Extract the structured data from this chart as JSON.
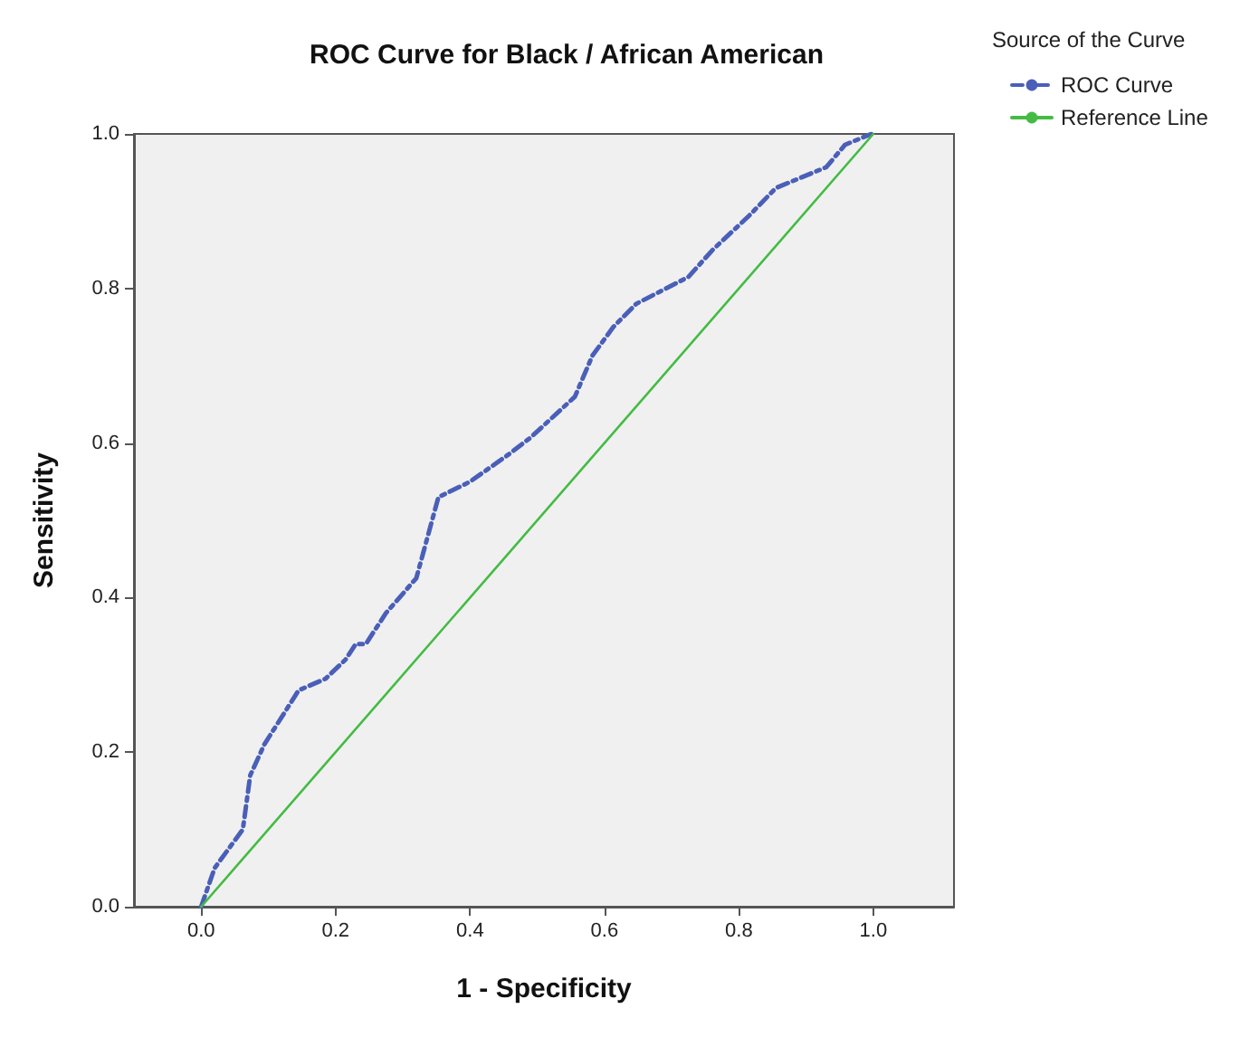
{
  "chart_data": {
    "type": "line",
    "title": "ROC Curve for Black / African American",
    "xlabel": "1 - Specificity",
    "ylabel": "Sensitivity",
    "legend_title": "Source of the Curve",
    "legend": "top right",
    "grid": false,
    "marker": "none",
    "xlim": [
      -0.1,
      1.12
    ],
    "ylim": [
      0,
      1
    ],
    "xticks": [
      {
        "value": 0,
        "label": "0.0"
      },
      {
        "value": 0.2,
        "label": "0.2"
      },
      {
        "value": 0.4,
        "label": "0.4"
      },
      {
        "value": 0.6,
        "label": "0.6"
      },
      {
        "value": 0.8,
        "label": "0.8"
      },
      {
        "value": 1,
        "label": "1.0"
      }
    ],
    "yticks": [
      {
        "value": 0,
        "label": "0.0"
      },
      {
        "value": 0.2,
        "label": "0.2"
      },
      {
        "value": 0.4,
        "label": "0.4"
      },
      {
        "value": 0.6,
        "label": "0.6"
      },
      {
        "value": 0.8,
        "label": "0.8"
      },
      {
        "value": 1,
        "label": "1.0"
      }
    ],
    "series": [
      {
        "name": "ROC Curve",
        "color": "#4a5fb8",
        "line_style": "dashed",
        "x": [
          0,
          0.02,
          0.062,
          0.073,
          0.094,
          0.145,
          0.185,
          0.215,
          0.23,
          0.245,
          0.275,
          0.32,
          0.353,
          0.4,
          0.457,
          0.49,
          0.556,
          0.582,
          0.613,
          0.647,
          0.725,
          0.761,
          0.815,
          0.855,
          0.93,
          0.958,
          0.997
        ],
        "values": [
          0,
          0.05,
          0.1,
          0.17,
          0.21,
          0.28,
          0.295,
          0.32,
          0.34,
          0.34,
          0.38,
          0.425,
          0.53,
          0.55,
          0.585,
          0.607,
          0.66,
          0.713,
          0.75,
          0.78,
          0.815,
          0.85,
          0.894,
          0.93,
          0.957,
          0.986,
          1
        ]
      },
      {
        "name": "Reference Line",
        "color": "#44bb44",
        "line_style": "solid",
        "x": [
          0,
          1
        ],
        "values": [
          0,
          1
        ]
      }
    ]
  }
}
